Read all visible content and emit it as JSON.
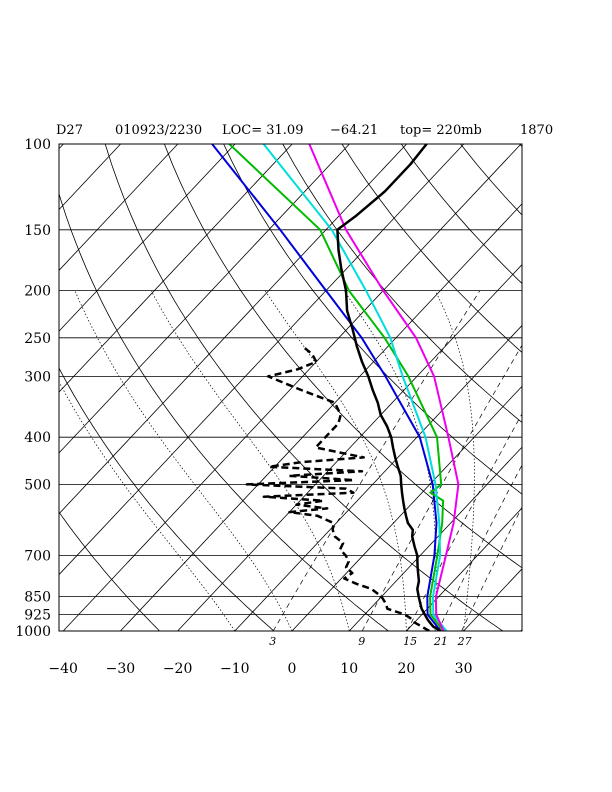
{
  "header": {
    "station": "D27",
    "datetime": "010923/2230",
    "loc": "LOC= 31.09",
    "lon": "−64.21",
    "top": "top= 220mb",
    "num": "1870"
  },
  "chart_data": {
    "type": "skew-t",
    "pressure_axis": {
      "scale": "log",
      "range_mb": [
        1000,
        100
      ],
      "levels": [
        100,
        150,
        200,
        250,
        300,
        400,
        500,
        700,
        850,
        925,
        1000
      ],
      "labels": [
        "100",
        "150",
        "200",
        "250",
        "300",
        "400",
        "500",
        "700",
        "850",
        "925",
        "1000"
      ]
    },
    "temperature_axis": {
      "range_c": [
        -40,
        35
      ],
      "ticks": [
        -40,
        -30,
        -20,
        -10,
        0,
        10,
        20,
        30
      ],
      "labels": [
        "−40",
        "−30",
        "−20",
        "−10",
        "0",
        "10",
        "20",
        "30"
      ],
      "skewed": true
    },
    "mixing_ratio_labels": [
      "3",
      "9",
      "15",
      "21",
      "27"
    ],
    "grid": true,
    "colors": {
      "temperature": "#000000",
      "dewpoint": "#000000",
      "blue": "#0000dd",
      "green": "#00bb00",
      "cyan": "#00dddd",
      "magenta": "#ee00ee"
    },
    "temperature_profile": [
      {
        "p": 1000,
        "t": 26.0
      },
      {
        "p": 980,
        "t": 24.0
      },
      {
        "p": 950,
        "t": 22.0
      },
      {
        "p": 925,
        "t": 20.5
      },
      {
        "p": 900,
        "t": 19.0
      },
      {
        "p": 870,
        "t": 17.5
      },
      {
        "p": 850,
        "t": 16.5
      },
      {
        "p": 820,
        "t": 15.0
      },
      {
        "p": 790,
        "t": 14.0
      },
      {
        "p": 760,
        "t": 12.5
      },
      {
        "p": 740,
        "t": 11.5
      },
      {
        "p": 720,
        "t": 10.5
      },
      {
        "p": 700,
        "t": 9.5
      },
      {
        "p": 670,
        "t": 7.5
      },
      {
        "p": 640,
        "t": 5.5
      },
      {
        "p": 620,
        "t": 4.5
      },
      {
        "p": 600,
        "t": 2.5
      },
      {
        "p": 580,
        "t": 1.0
      },
      {
        "p": 560,
        "t": -0.5
      },
      {
        "p": 540,
        "t": -2.0
      },
      {
        "p": 520,
        "t": -3.5
      },
      {
        "p": 500,
        "t": -5.0
      },
      {
        "p": 480,
        "t": -6.5
      },
      {
        "p": 460,
        "t": -8.5
      },
      {
        "p": 440,
        "t": -10.5
      },
      {
        "p": 420,
        "t": -12.5
      },
      {
        "p": 400,
        "t": -14.5
      },
      {
        "p": 380,
        "t": -17.0
      },
      {
        "p": 360,
        "t": -20.0
      },
      {
        "p": 340,
        "t": -22.5
      },
      {
        "p": 320,
        "t": -25.5
      },
      {
        "p": 300,
        "t": -28.5
      },
      {
        "p": 280,
        "t": -32.0
      },
      {
        "p": 260,
        "t": -35.5
      },
      {
        "p": 240,
        "t": -39.0
      },
      {
        "p": 220,
        "t": -43.0
      },
      {
        "p": 200,
        "t": -46.5
      },
      {
        "p": 180,
        "t": -51.0
      },
      {
        "p": 165,
        "t": -54.5
      },
      {
        "p": 150,
        "t": -58.0
      },
      {
        "p": 140,
        "t": -57.0
      },
      {
        "p": 125,
        "t": -56.0
      },
      {
        "p": 110,
        "t": -56.0
      },
      {
        "p": 100,
        "t": -56.5
      }
    ],
    "dewpoint_profile": [
      {
        "p": 1000,
        "t": 24.0
      },
      {
        "p": 980,
        "t": 22.0
      },
      {
        "p": 960,
        "t": 20.0
      },
      {
        "p": 940,
        "t": 18.5
      },
      {
        "p": 925,
        "t": 17.0
      },
      {
        "p": 900,
        "t": 13.0
      },
      {
        "p": 880,
        "t": 12.0
      },
      {
        "p": 850,
        "t": 10.0
      },
      {
        "p": 820,
        "t": 7.0
      },
      {
        "p": 800,
        "t": 3.5
      },
      {
        "p": 780,
        "t": 0.5
      },
      {
        "p": 760,
        "t": 1.0
      },
      {
        "p": 740,
        "t": -1.0
      },
      {
        "p": 720,
        "t": -1.5
      },
      {
        "p": 700,
        "t": -3.0
      },
      {
        "p": 680,
        "t": -5.0
      },
      {
        "p": 660,
        "t": -5.5
      },
      {
        "p": 640,
        "t": -8.0
      },
      {
        "p": 620,
        "t": -9.5
      },
      {
        "p": 600,
        "t": -10.5
      },
      {
        "p": 580,
        "t": -14.5
      },
      {
        "p": 570,
        "t": -20.0
      },
      {
        "p": 560,
        "t": -14.0
      },
      {
        "p": 550,
        "t": -20.0
      },
      {
        "p": 540,
        "t": -16.0
      },
      {
        "p": 530,
        "t": -27.0
      },
      {
        "p": 520,
        "t": -12.0
      },
      {
        "p": 510,
        "t": -14.0
      },
      {
        "p": 500,
        "t": -32.0
      },
      {
        "p": 490,
        "t": -14.0
      },
      {
        "p": 480,
        "t": -26.0
      },
      {
        "p": 470,
        "t": -14.0
      },
      {
        "p": 460,
        "t": -31.0
      },
      {
        "p": 450,
        "t": -26.0
      },
      {
        "p": 440,
        "t": -16.0
      },
      {
        "p": 430,
        "t": -21.0
      },
      {
        "p": 420,
        "t": -26.0
      },
      {
        "p": 400,
        "t": -26.0
      },
      {
        "p": 390,
        "t": -26.0
      },
      {
        "p": 375,
        "t": -26.0
      },
      {
        "p": 360,
        "t": -27.0
      },
      {
        "p": 340,
        "t": -30.0
      },
      {
        "p": 320,
        "t": -38.0
      },
      {
        "p": 300,
        "t": -46.0
      },
      {
        "p": 290,
        "t": -42.0
      },
      {
        "p": 280,
        "t": -40.0
      },
      {
        "p": 270,
        "t": -42.0
      },
      {
        "p": 260,
        "t": -45.0
      }
    ],
    "parcel_curves": [
      {
        "color": "blue",
        "points": [
          {
            "p": 1000,
            "t": 26.0
          },
          {
            "p": 925,
            "t": 21.0
          },
          {
            "p": 850,
            "t": 18.0
          },
          {
            "p": 700,
            "t": 12.5
          },
          {
            "p": 600,
            "t": 7.5
          },
          {
            "p": 500,
            "t": 0.5
          },
          {
            "p": 400,
            "t": -9.5
          },
          {
            "p": 300,
            "t": -25.5
          },
          {
            "p": 250,
            "t": -36.0
          },
          {
            "p": 200,
            "t": -50.0
          },
          {
            "p": 150,
            "t": -68.0
          },
          {
            "p": 100,
            "t": -94.0
          }
        ]
      },
      {
        "color": "green",
        "points": [
          {
            "p": 1000,
            "t": 26.5
          },
          {
            "p": 925,
            "t": 21.5
          },
          {
            "p": 850,
            "t": 18.5
          },
          {
            "p": 700,
            "t": 13.0
          },
          {
            "p": 600,
            "t": 8.5
          },
          {
            "p": 540,
            "t": 5.0
          },
          {
            "p": 520,
            "t": 1.5
          },
          {
            "p": 500,
            "t": 2.0
          },
          {
            "p": 400,
            "t": -6.5
          },
          {
            "p": 300,
            "t": -21.5
          },
          {
            "p": 250,
            "t": -32.0
          },
          {
            "p": 200,
            "t": -46.0
          },
          {
            "p": 150,
            "t": -61.0
          },
          {
            "p": 100,
            "t": -91.0
          }
        ]
      },
      {
        "color": "cyan",
        "points": [
          {
            "p": 1000,
            "t": 27.0
          },
          {
            "p": 925,
            "t": 22.0
          },
          {
            "p": 850,
            "t": 19.0
          },
          {
            "p": 700,
            "t": 13.5
          },
          {
            "p": 600,
            "t": 8.0
          },
          {
            "p": 500,
            "t": 1.0
          },
          {
            "p": 400,
            "t": -8.5
          },
          {
            "p": 300,
            "t": -22.5
          },
          {
            "p": 250,
            "t": -31.0
          },
          {
            "p": 200,
            "t": -43.0
          },
          {
            "p": 150,
            "t": -59.0
          },
          {
            "p": 100,
            "t": -85.0
          }
        ]
      },
      {
        "color": "magenta",
        "points": [
          {
            "p": 1000,
            "t": 26.5
          },
          {
            "p": 925,
            "t": 22.5
          },
          {
            "p": 850,
            "t": 19.5
          },
          {
            "p": 700,
            "t": 14.5
          },
          {
            "p": 600,
            "t": 10.5
          },
          {
            "p": 500,
            "t": 5.0
          },
          {
            "p": 400,
            "t": -4.5
          },
          {
            "p": 300,
            "t": -17.0
          },
          {
            "p": 250,
            "t": -26.5
          },
          {
            "p": 200,
            "t": -40.0
          },
          {
            "p": 150,
            "t": -56.5
          },
          {
            "p": 100,
            "t": -77.0
          }
        ]
      }
    ]
  }
}
